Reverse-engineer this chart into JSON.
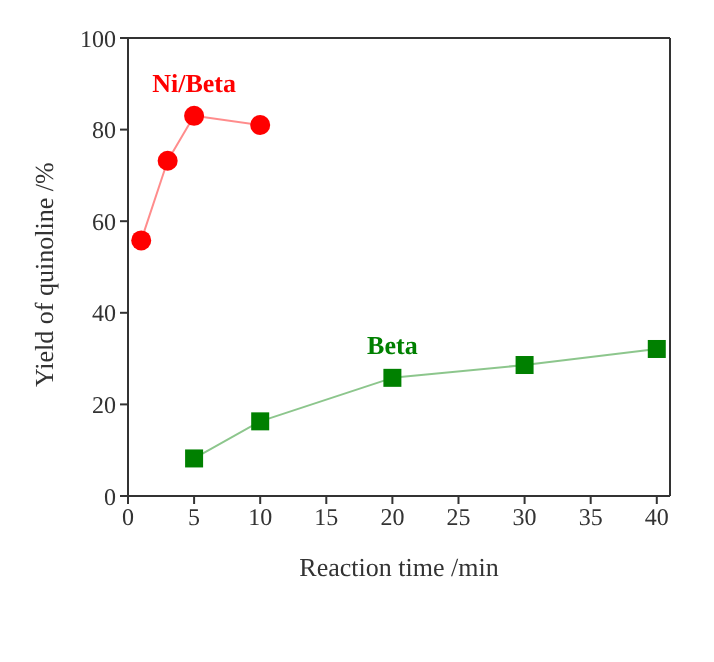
{
  "chart_data": {
    "type": "line",
    "xlabel": "Reaction time /min",
    "ylabel": "Yield of quinoline /%",
    "xlim": [
      0,
      41
    ],
    "xticks": [
      0,
      5,
      10,
      15,
      20,
      25,
      30,
      35,
      40
    ],
    "ylim": [
      0,
      100
    ],
    "yticks": [
      0,
      20,
      40,
      60,
      80,
      100
    ],
    "legend": false,
    "series": [
      {
        "name": "Ni/Beta",
        "color": "#ff0000",
        "marker": "circle",
        "x": [
          1,
          3,
          5,
          10
        ],
        "values": [
          55.8,
          73.2,
          83,
          81
        ]
      },
      {
        "name": "Beta",
        "color": "#008000",
        "marker": "square",
        "x": [
          5,
          10,
          20,
          30,
          40
        ],
        "values": [
          8.2,
          16.3,
          25.8,
          28.6,
          32.1
        ]
      }
    ]
  }
}
